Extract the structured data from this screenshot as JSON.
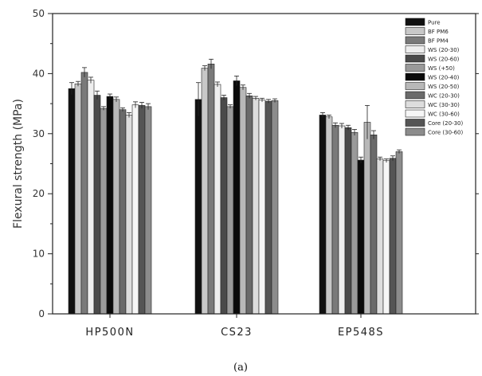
{
  "chart_data": {
    "type": "bar",
    "ylabel": "Flexural strength (MPa)",
    "xlabel": "",
    "caption": "(a)",
    "ylim": [
      0,
      50
    ],
    "yticks": [
      0,
      10,
      20,
      30,
      40,
      50
    ],
    "legend_position": "top-right",
    "grid": false,
    "categories": [
      "HP500N",
      "CS23",
      "EP548S"
    ],
    "series": [
      {
        "name": "Pure",
        "color": "#111111",
        "values": [
          37.5,
          35.7,
          33.1
        ],
        "errors": [
          1.0,
          2.8,
          0.4
        ]
      },
      {
        "name": "BF PM6",
        "color": "#c8c8c8",
        "values": [
          38.3,
          40.9,
          32.8
        ],
        "errors": [
          0.4,
          0.4,
          0.3
        ]
      },
      {
        "name": "BF PM4",
        "color": "#7a7a7a",
        "values": [
          40.2,
          41.6,
          31.4
        ],
        "errors": [
          0.8,
          0.8,
          0.4
        ]
      },
      {
        "name": "WS (20-30)",
        "color": "#eeeeee",
        "values": [
          38.9,
          38.2,
          31.3
        ],
        "errors": [
          0.5,
          0.4,
          0.4
        ]
      },
      {
        "name": "WS (20-60)",
        "color": "#4a4a4a",
        "values": [
          36.4,
          36.0,
          31.0
        ],
        "errors": [
          0.7,
          0.4,
          0.4
        ]
      },
      {
        "name": "WS (+50)",
        "color": "#9a9a9a",
        "values": [
          34.2,
          34.5,
          30.2
        ],
        "errors": [
          0.3,
          0.3,
          0.5
        ]
      },
      {
        "name": "WS (20-40)",
        "color": "#0a0a0a",
        "values": [
          36.2,
          38.8,
          25.6
        ],
        "errors": [
          0.4,
          0.8,
          0.5
        ]
      },
      {
        "name": "WS (20-50)",
        "color": "#b8b8b8",
        "values": [
          35.7,
          37.7,
          31.9
        ],
        "errors": [
          0.4,
          0.4,
          2.8
        ]
      },
      {
        "name": "WC (20-30)",
        "color": "#6a6a6a",
        "values": [
          34.0,
          36.3,
          29.8
        ],
        "errors": [
          0.3,
          0.4,
          0.7
        ]
      },
      {
        "name": "WC (30-30)",
        "color": "#dddddd",
        "values": [
          33.1,
          35.9,
          25.8
        ],
        "errors": [
          0.4,
          0.3,
          0.3
        ]
      },
      {
        "name": "WC (30-60)",
        "color": "#f6f6f6",
        "values": [
          34.8,
          35.6,
          25.5
        ],
        "errors": [
          0.5,
          0.3,
          0.3
        ]
      },
      {
        "name": "Core (20-30)",
        "color": "#555555",
        "values": [
          34.7,
          35.4,
          25.9
        ],
        "errors": [
          0.5,
          0.3,
          0.4
        ]
      },
      {
        "name": "Core (30-60)",
        "color": "#8c8c8c",
        "values": [
          34.5,
          35.5,
          27.0
        ],
        "errors": [
          0.5,
          0.3,
          0.3
        ]
      }
    ]
  }
}
